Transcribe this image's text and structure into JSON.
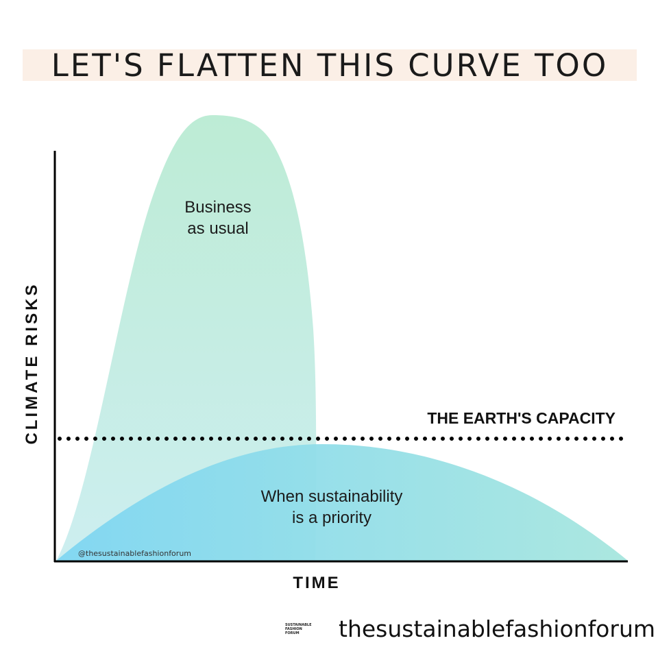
{
  "header": {
    "title": "LET'S FLATTEN THIS CURVE TOO"
  },
  "chart_data": {
    "type": "area",
    "xlabel": "TIME",
    "ylabel": "CLIMATE RISKS",
    "reference_line": {
      "label": "THE EARTH'S CAPACITY",
      "style": "dotted",
      "y": 0.3
    },
    "series": [
      {
        "label": "Business\nas usual",
        "color": "#b9ecd9",
        "peak_relative": 1.0,
        "shape": "tall narrow peak, rises steeply and drops sharply early in time"
      },
      {
        "label": "When sustainability\nis a priority",
        "color": "#8fd8f0",
        "peak_relative": 0.3,
        "shape": "low wide hump spanning entire time axis"
      }
    ],
    "watermark": "@thesustainablefashionforum",
    "colors": {
      "tall_curve_top": "#bdecd5",
      "tall_curve_bottom": "#cdeef0",
      "flat_curve_left": "#7fd6f2",
      "flat_curve_right": "#a7e6de",
      "axis": "#000000"
    }
  },
  "footer": {
    "logo_lines": [
      "SUSTAINABLE",
      "FASHION",
      "FORUM"
    ],
    "brand": "thesustainablefashionforum"
  }
}
